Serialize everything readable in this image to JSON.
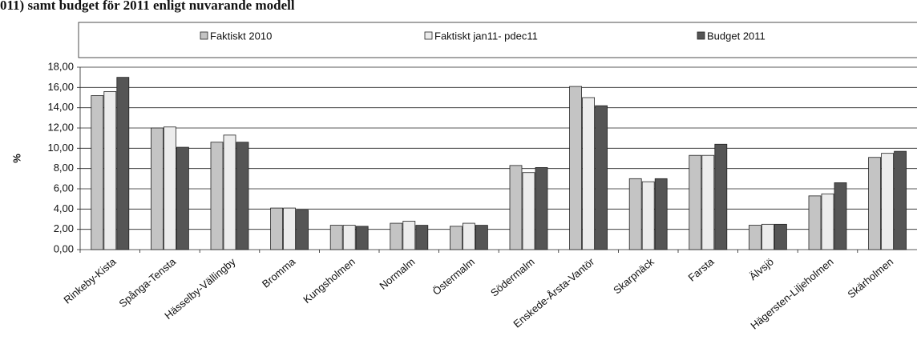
{
  "chart_data": {
    "type": "bar",
    "title": "011) samt budget för 2011 enligt nuvarande modell",
    "y_label": "%",
    "categories": [
      "Rinkeby-Kista",
      "Spånga-Tensta",
      "Hässelby-Vällingby",
      "Bromma",
      "Kungsholmen",
      "Normalm",
      "Östermalm",
      "Södermalm",
      "Enskede-Årsta-Vantör",
      "Skarpnäck",
      "Farsta",
      "Älvsjö",
      "Hägersten-Liljeholmen",
      "Skärholmen"
    ],
    "series": [
      {
        "name": "Faktiskt 2010",
        "color": "#c4c4c4",
        "values": [
          15.2,
          12.0,
          10.6,
          4.1,
          2.4,
          2.6,
          2.3,
          8.3,
          16.1,
          7.0,
          9.3,
          2.4,
          5.3,
          9.1
        ]
      },
      {
        "name": "Faktiskt jan11- pdec11",
        "color": "#ececec",
        "values": [
          15.6,
          12.1,
          11.3,
          4.1,
          2.4,
          2.8,
          2.6,
          7.6,
          15.0,
          6.7,
          9.3,
          2.5,
          5.5,
          9.5
        ]
      },
      {
        "name": "Budget 2011",
        "color": "#555555",
        "values": [
          17.0,
          10.1,
          10.6,
          3.9,
          2.3,
          2.4,
          2.4,
          8.1,
          14.2,
          7.0,
          10.4,
          2.5,
          6.6,
          9.7
        ]
      }
    ],
    "ylim": [
      0,
      18
    ],
    "yticks": [
      {
        "value": 0,
        "label": "0,00"
      },
      {
        "value": 2,
        "label": "2,00"
      },
      {
        "value": 4,
        "label": "4,00"
      },
      {
        "value": 6,
        "label": "6,00"
      },
      {
        "value": 8,
        "label": "8,00"
      },
      {
        "value": 10,
        "label": "10,00"
      },
      {
        "value": 12,
        "label": "12,00"
      },
      {
        "value": 14,
        "label": "14,00"
      },
      {
        "value": 16,
        "label": "16,00"
      },
      {
        "value": 18,
        "label": "18,00"
      }
    ],
    "grid": true,
    "legend": "top"
  }
}
